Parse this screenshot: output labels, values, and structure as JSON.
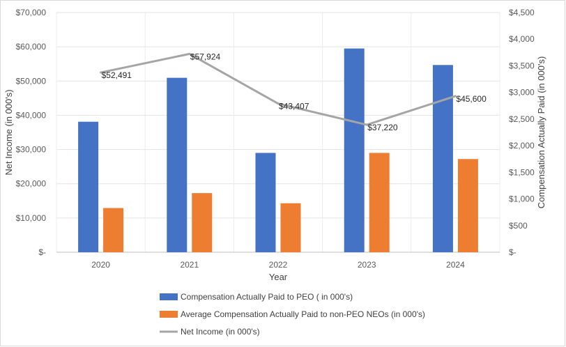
{
  "chart_data": {
    "type": "bar",
    "categories": [
      "2020",
      "2021",
      "2022",
      "2023",
      "2024"
    ],
    "xlabel": "Year",
    "ylabel": "Net Income (in 000's)",
    "y2label": "Compensation Actually Paid (in 000's)",
    "ylim": [
      0,
      70000
    ],
    "y2lim": [
      0,
      4500
    ],
    "y_ticks": [
      "$-",
      "$10,000",
      "$20,000",
      "$30,000",
      "$40,000",
      "$50,000",
      "$60,000",
      "$70,000"
    ],
    "y_tick_values": [
      0,
      10000,
      20000,
      30000,
      40000,
      50000,
      60000,
      70000
    ],
    "y2_ticks": [
      "$-",
      "$500",
      "$1,000",
      "$1,500",
      "$2,000",
      "$2,500",
      "$3,000",
      "$3,500",
      "$4,000",
      "$4,500"
    ],
    "y2_tick_values": [
      0,
      500,
      1000,
      1500,
      2000,
      2500,
      3000,
      3500,
      4000,
      4500
    ],
    "grid": true,
    "legend_position": "bottom",
    "series": [
      {
        "name": "Compensation Actually Paid to PEO ( in 000's)",
        "kind": "bar",
        "axis": "right",
        "color": "#4472c4",
        "values": [
          2450,
          3275,
          1865,
          3825,
          3515
        ]
      },
      {
        "name": "Average Compensation Actually Paid to non-PEO NEOs  (in 000's)",
        "kind": "bar",
        "axis": "right",
        "color": "#ed7d31",
        "values": [
          830,
          1110,
          920,
          1865,
          1750
        ]
      },
      {
        "name": "Net Income (in 000's)",
        "kind": "line",
        "axis": "left",
        "color": "#a5a5a5",
        "values": [
          52491,
          57924,
          43407,
          37220,
          45600
        ],
        "labels": [
          "$52,491",
          "$57,924",
          "$43,407",
          "$37,220",
          "$45,600"
        ]
      }
    ]
  }
}
